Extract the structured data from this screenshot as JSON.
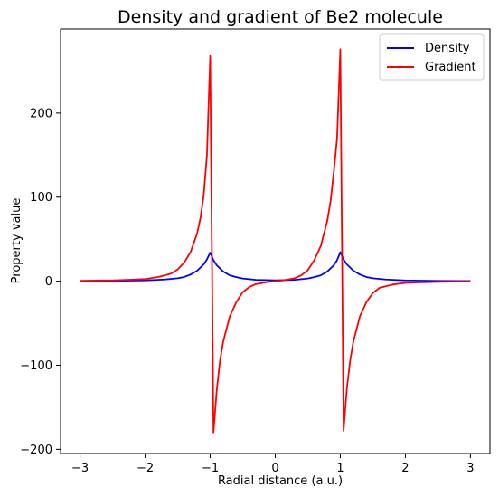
{
  "chart_data": {
    "type": "line",
    "title": "Density and gradient of Be2 molecule",
    "xlabel": "Radial distance (a.u.)",
    "ylabel": "Property value",
    "xlim": [
      -3.3,
      3.3
    ],
    "ylim": [
      -205,
      300
    ],
    "xticks": [
      -3,
      -2,
      -1,
      0,
      1,
      2,
      3
    ],
    "xtick_labels": [
      "−3",
      "−2",
      "−1",
      "0",
      "1",
      "2",
      "3"
    ],
    "yticks": [
      -200,
      -100,
      0,
      100,
      200
    ],
    "ytick_labels": [
      "−200",
      "−100",
      "0",
      "100",
      "200"
    ],
    "grid": false,
    "legend_position": "top-right",
    "series": [
      {
        "name": "Density",
        "color": "#0000ff",
        "x": [
          -3.0,
          -2.5,
          -2.0,
          -1.7,
          -1.5,
          -1.4,
          -1.3,
          -1.2,
          -1.1,
          -1.05,
          -1.0,
          -0.95,
          -0.9,
          -0.8,
          -0.7,
          -0.6,
          -0.5,
          -0.3,
          0.0,
          0.3,
          0.5,
          0.6,
          0.7,
          0.8,
          0.9,
          0.95,
          1.0,
          1.05,
          1.1,
          1.2,
          1.3,
          1.4,
          1.5,
          1.7,
          2.0,
          2.5,
          3.0
        ],
        "y": [
          0.2,
          0.4,
          0.9,
          2.0,
          3.5,
          5.0,
          8.0,
          12.5,
          20.0,
          26.0,
          34.0,
          25.0,
          19.0,
          11.5,
          7.0,
          4.8,
          3.2,
          1.6,
          1.0,
          1.6,
          3.2,
          4.8,
          7.0,
          11.5,
          19.0,
          25.0,
          34.5,
          26.0,
          20.0,
          12.5,
          8.0,
          5.0,
          3.5,
          2.0,
          0.9,
          0.4,
          0.2
        ]
      },
      {
        "name": "Gradient",
        "color": "#ff0000",
        "x": [
          -3.0,
          -2.5,
          -2.0,
          -1.8,
          -1.6,
          -1.5,
          -1.4,
          -1.3,
          -1.2,
          -1.15,
          -1.1,
          -1.05,
          -1.0,
          -0.95,
          -0.9,
          -0.85,
          -0.8,
          -0.7,
          -0.6,
          -0.5,
          -0.4,
          -0.3,
          -0.1,
          0.1,
          0.3,
          0.4,
          0.5,
          0.6,
          0.7,
          0.8,
          0.85,
          0.9,
          0.95,
          1.0,
          1.05,
          1.1,
          1.15,
          1.2,
          1.3,
          1.4,
          1.5,
          1.6,
          1.8,
          2.0,
          2.5,
          3.0
        ],
        "y": [
          0.5,
          1.0,
          2.5,
          5.0,
          9.0,
          14.0,
          22.0,
          35.0,
          57.0,
          75.0,
          102.0,
          150.0,
          268.0,
          -180.0,
          -130.0,
          -95.0,
          -72.0,
          -42.0,
          -25.0,
          -13.0,
          -7.0,
          -3.5,
          -0.8,
          0.8,
          3.5,
          7.0,
          13.0,
          25.0,
          42.0,
          72.0,
          95.0,
          130.0,
          170.0,
          276.0,
          -178.0,
          -128.0,
          -95.0,
          -72.0,
          -42.0,
          -25.0,
          -14.0,
          -8.0,
          -4.0,
          -2.0,
          -0.8,
          -0.3
        ]
      }
    ]
  }
}
